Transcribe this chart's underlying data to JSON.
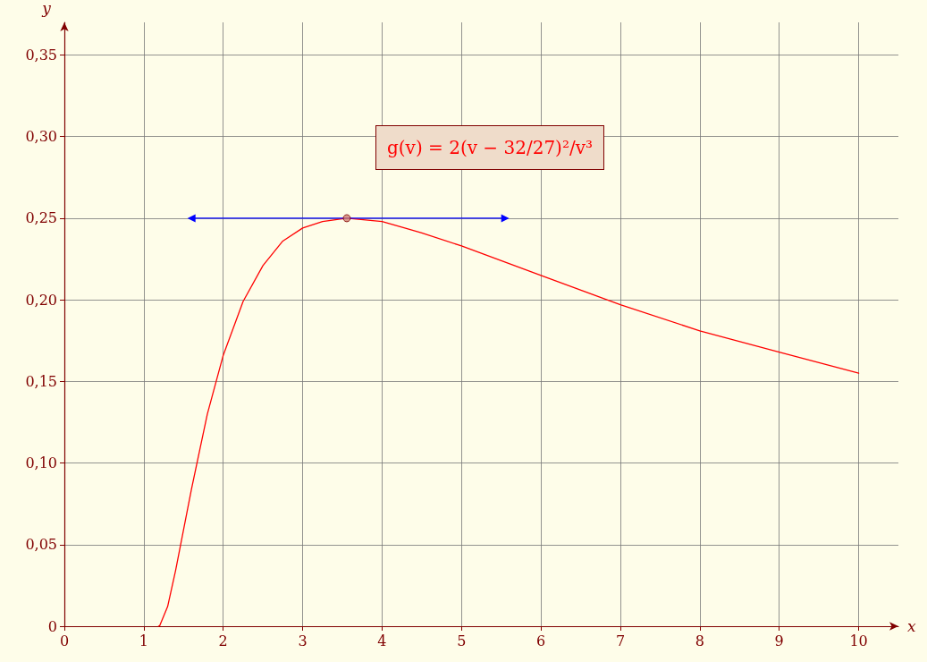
{
  "chart_data": {
    "type": "line",
    "xlabel": "x",
    "ylabel": "y",
    "xlim": [
      0,
      10.5
    ],
    "ylim": [
      0,
      0.37
    ],
    "xticks": [
      0,
      1,
      2,
      3,
      4,
      5,
      6,
      7,
      8,
      9,
      10
    ],
    "yticks": [
      {
        "value": 0,
        "label": "0"
      },
      {
        "value": 0.05,
        "label": "0,05"
      },
      {
        "value": 0.1,
        "label": "0,10"
      },
      {
        "value": 0.15,
        "label": "0,15"
      },
      {
        "value": 0.2,
        "label": "0,20"
      },
      {
        "value": 0.25,
        "label": "0,25"
      },
      {
        "value": 0.3,
        "label": "0,30"
      },
      {
        "value": 0.35,
        "label": "0,35"
      }
    ],
    "grid": true,
    "line_style": "solid",
    "annotations": [
      "g(v) = 2(v − 32/27)²/v³"
    ],
    "series": [
      {
        "color": "#ff0000",
        "marker": "none",
        "x": [
          1.185,
          1.2,
          1.3,
          1.4,
          1.5,
          1.6,
          1.8,
          2,
          2.25,
          2.5,
          2.75,
          3,
          3.25,
          3.556,
          4,
          4.5,
          5,
          6,
          7,
          8,
          9,
          10
        ],
        "values": [
          0,
          0.0003,
          0.012,
          0.034,
          0.059,
          0.084,
          0.13,
          0.166,
          0.199,
          0.221,
          0.236,
          0.244,
          0.248,
          0.25,
          0.248,
          0.241,
          0.233,
          0.215,
          0.197,
          0.181,
          0.168,
          0.155
        ]
      },
      {
        "type": "line",
        "color": "#0000ff",
        "marker": "triangle",
        "x": [
          1.6,
          5.55
        ],
        "values": [
          0.25,
          0.25
        ]
      },
      {
        "type": "scatter",
        "color": "#d08070",
        "marker": "circle",
        "x": [
          3.556
        ],
        "values": [
          0.25
        ]
      }
    ]
  }
}
